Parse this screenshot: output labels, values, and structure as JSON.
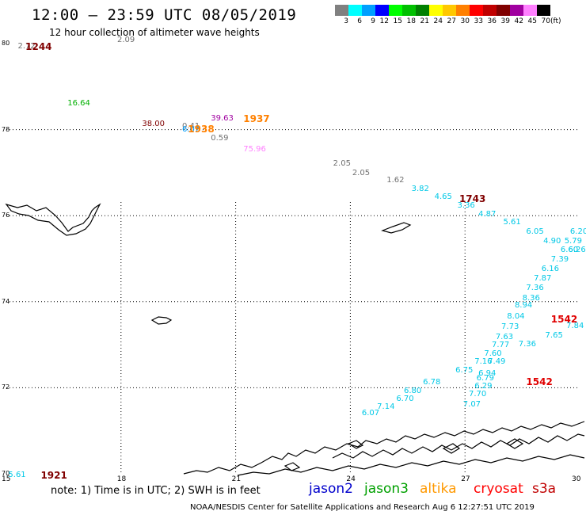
{
  "header": {
    "title": "12:00 – 23:59 UTC 08/05/2019",
    "subtitle": "12 hour collection of altimeter wave heights"
  },
  "legend": {
    "unit": "(ft)",
    "bins": [
      {
        "label": "3",
        "color": "#808080"
      },
      {
        "label": "6",
        "color": "#00ffff"
      },
      {
        "label": "9",
        "color": "#00a0ff"
      },
      {
        "label": "12",
        "color": "#0000ff"
      },
      {
        "label": "15",
        "color": "#00ff00"
      },
      {
        "label": "18",
        "color": "#00c000"
      },
      {
        "label": "21",
        "color": "#008000"
      },
      {
        "label": "24",
        "color": "#ffff00"
      },
      {
        "label": "27",
        "color": "#ffc800"
      },
      {
        "label": "30",
        "color": "#ff8000"
      },
      {
        "label": "33",
        "color": "#ff0000"
      },
      {
        "label": "36",
        "color": "#c00000"
      },
      {
        "label": "39",
        "color": "#800000"
      },
      {
        "label": "42",
        "color": "#a000a0"
      },
      {
        "label": "45",
        "color": "#ff80ff"
      },
      {
        "label": "70",
        "color": "#000000"
      }
    ]
  },
  "axes": {
    "lat_ticks": [
      "80",
      "78",
      "76",
      "74",
      "72",
      "70"
    ],
    "lon_ticks": [
      "15",
      "18",
      "21",
      "24",
      "27",
      "30"
    ]
  },
  "wave_labels": [
    {
      "text": "2.72",
      "lon": 15.3,
      "lat": 79.9,
      "color": "#707070"
    },
    {
      "text": "2.09",
      "lon": 17.9,
      "lat": 80.05,
      "color": "#707070"
    },
    {
      "text": "16.64",
      "lon": 16.6,
      "lat": 78.58,
      "color": "#00b000"
    },
    {
      "text": "38.00",
      "lon": 18.55,
      "lat": 78.1,
      "color": "#800000"
    },
    {
      "text": "0.41",
      "lon": 19.6,
      "lat": 78.05,
      "color": "#707070"
    },
    {
      "text": "6.07",
      "lon": 19.6,
      "lat": 77.97,
      "color": "#00a0ff"
    },
    {
      "text": "39.63",
      "lon": 20.35,
      "lat": 78.23,
      "color": "#a000a0"
    },
    {
      "text": "0.59",
      "lon": 20.35,
      "lat": 77.78,
      "color": "#707070"
    },
    {
      "text": "75.96",
      "lon": 21.2,
      "lat": 77.52,
      "color": "#ff80ff"
    },
    {
      "text": "2.05",
      "lon": 23.55,
      "lat": 77.18,
      "color": "#707070"
    },
    {
      "text": "2.05",
      "lon": 24.05,
      "lat": 76.97,
      "color": "#707070"
    },
    {
      "text": "1.62",
      "lon": 24.95,
      "lat": 76.8,
      "color": "#707070"
    },
    {
      "text": "3.82",
      "lon": 25.6,
      "lat": 76.6,
      "color": "#00c8e6"
    },
    {
      "text": "4.65",
      "lon": 26.2,
      "lat": 76.4,
      "color": "#00c8e6"
    },
    {
      "text": "3.36",
      "lon": 26.8,
      "lat": 76.2,
      "color": "#00c8e6"
    },
    {
      "text": "4.87",
      "lon": 27.35,
      "lat": 76.0,
      "color": "#00c8e6"
    },
    {
      "text": "5.61",
      "lon": 28.0,
      "lat": 75.82,
      "color": "#00c8e6"
    },
    {
      "text": "6.05",
      "lon": 28.6,
      "lat": 75.6,
      "color": "#00c8e6"
    },
    {
      "text": "4.90",
      "lon": 29.05,
      "lat": 75.38,
      "color": "#00c8e6"
    },
    {
      "text": "5.79",
      "lon": 29.6,
      "lat": 75.38,
      "color": "#00c8e6"
    },
    {
      "text": "6.20",
      "lon": 29.75,
      "lat": 75.6,
      "color": "#00c8e6"
    },
    {
      "text": "6.60",
      "lon": 29.5,
      "lat": 75.17,
      "color": "#00c8e6"
    },
    {
      "text": "6.26",
      "lon": 29.7,
      "lat": 75.17,
      "color": "#00c8e6"
    },
    {
      "text": "7.39",
      "lon": 29.25,
      "lat": 74.95,
      "color": "#00c8e6"
    },
    {
      "text": "6.16",
      "lon": 29.0,
      "lat": 74.74,
      "color": "#00c8e6"
    },
    {
      "text": "7.87",
      "lon": 28.8,
      "lat": 74.52,
      "color": "#00c8e6"
    },
    {
      "text": "7.36",
      "lon": 28.6,
      "lat": 74.3,
      "color": "#00c8e6"
    },
    {
      "text": "8.36",
      "lon": 28.5,
      "lat": 74.06,
      "color": "#00c8e6"
    },
    {
      "text": "8.94",
      "lon": 28.3,
      "lat": 73.88,
      "color": "#00c8e6"
    },
    {
      "text": "8.04",
      "lon": 28.1,
      "lat": 73.62,
      "color": "#00c8e6"
    },
    {
      "text": "7.84",
      "lon": 29.65,
      "lat": 73.4,
      "color": "#00c8e6"
    },
    {
      "text": "7.73",
      "lon": 27.95,
      "lat": 73.38,
      "color": "#00c8e6"
    },
    {
      "text": "7.65",
      "lon": 29.1,
      "lat": 73.18,
      "color": "#00c8e6"
    },
    {
      "text": "7.63",
      "lon": 27.8,
      "lat": 73.15,
      "color": "#00c8e6"
    },
    {
      "text": "7.36",
      "lon": 28.4,
      "lat": 72.98,
      "color": "#00c8e6"
    },
    {
      "text": "7.77",
      "lon": 27.7,
      "lat": 72.97,
      "color": "#00c8e6"
    },
    {
      "text": "7.60",
      "lon": 27.5,
      "lat": 72.76,
      "color": "#00c8e6"
    },
    {
      "text": "7.16",
      "lon": 27.25,
      "lat": 72.58,
      "color": "#00c8e6"
    },
    {
      "text": "7.49",
      "lon": 27.6,
      "lat": 72.58,
      "color": "#00c8e6"
    },
    {
      "text": "6.75",
      "lon": 26.75,
      "lat": 72.38,
      "color": "#00c8e6"
    },
    {
      "text": "6.94",
      "lon": 27.35,
      "lat": 72.3,
      "color": "#00c8e6"
    },
    {
      "text": "6.79",
      "lon": 27.3,
      "lat": 72.2,
      "color": "#00c8e6"
    },
    {
      "text": "6.78",
      "lon": 25.9,
      "lat": 72.1,
      "color": "#00c8e6"
    },
    {
      "text": "6.29",
      "lon": 27.25,
      "lat": 72.0,
      "color": "#00c8e6"
    },
    {
      "text": "6.80",
      "lon": 25.4,
      "lat": 71.9,
      "color": "#00c8e6"
    },
    {
      "text": "7.70",
      "lon": 27.1,
      "lat": 71.82,
      "color": "#00c8e6"
    },
    {
      "text": "6.70",
      "lon": 25.2,
      "lat": 71.72,
      "color": "#00c8e6"
    },
    {
      "text": "7.07",
      "lon": 26.95,
      "lat": 71.58,
      "color": "#00c8e6"
    },
    {
      "text": "7.14",
      "lon": 24.7,
      "lat": 71.52,
      "color": "#00c8e6"
    },
    {
      "text": "6.07",
      "lon": 24.3,
      "lat": 71.38,
      "color": "#00c8e6"
    },
    {
      "text": "5.61",
      "lon": 15.05,
      "lat": 69.94,
      "color": "#00c8e6"
    }
  ],
  "pass_times": [
    {
      "text": "1244",
      "lon": 15.5,
      "lat": 79.9,
      "color": "#800000"
    },
    {
      "text": "1937",
      "lon": 21.2,
      "lat": 78.23,
      "color": "#ff8000"
    },
    {
      "text": "1938",
      "lon": 19.75,
      "lat": 78.0,
      "color": "#ff8000"
    },
    {
      "text": "1743",
      "lon": 26.85,
      "lat": 76.38,
      "color": "#800000"
    },
    {
      "text": "1542",
      "lon": 29.25,
      "lat": 73.58,
      "color": "#e00000"
    },
    {
      "text": "1542",
      "lon": 28.6,
      "lat": 72.12,
      "color": "#e00000"
    },
    {
      "text": "1921",
      "lon": 15.9,
      "lat": 69.94,
      "color": "#800000"
    }
  ],
  "footer": {
    "note": "note:  1) Time is in UTC;  2) SWH is in feet",
    "satellites": [
      {
        "name": "jason2",
        "color": "#0000cc"
      },
      {
        "name": "jason3",
        "color": "#00a000"
      },
      {
        "name": "altika",
        "color": "#ff9900"
      },
      {
        "name": "cryosat",
        "color": "#ff0000"
      },
      {
        "name": "s3a",
        "color": "#c00000"
      }
    ],
    "credit": "NOAA/NESDIS Center for Satellite Applications and Research     Aug  6 12:27:51 UTC 2019"
  }
}
